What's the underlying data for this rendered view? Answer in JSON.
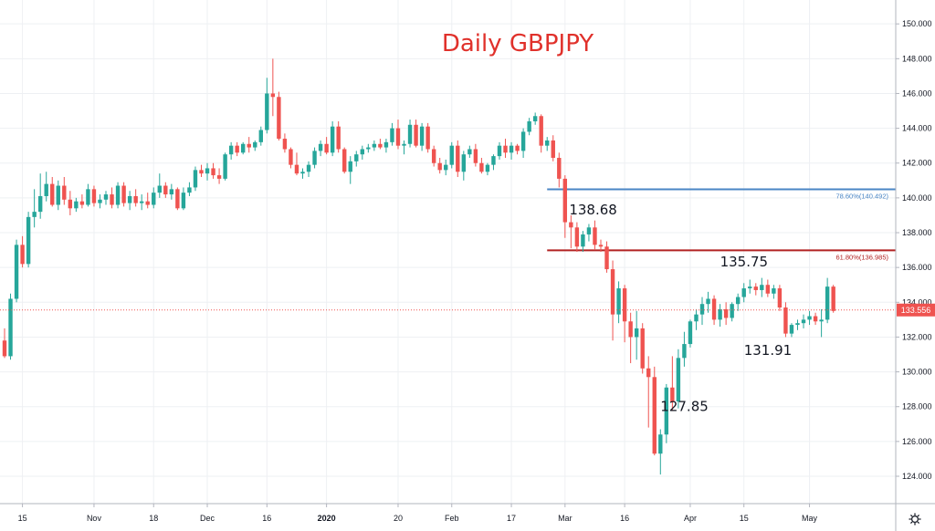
{
  "chart_data": {
    "type": "candlestick",
    "title": "Daily GBPJPY",
    "y_axis": {
      "ylim": [
        123.5,
        151.0
      ],
      "ticks": [
        "124.000",
        "126.000",
        "128.000",
        "130.000",
        "132.000",
        "134.000",
        "136.000",
        "138.000",
        "140.000",
        "142.000",
        "144.000",
        "146.000",
        "148.000",
        "150.000"
      ],
      "tick_values": [
        124,
        126,
        128,
        130,
        132,
        134,
        136,
        138,
        140,
        142,
        144,
        146,
        148,
        150
      ]
    },
    "x_axis": {
      "ticks": [
        {
          "label": "15",
          "index": 3,
          "bold": false
        },
        {
          "label": "Nov",
          "index": 15,
          "bold": false
        },
        {
          "label": "18",
          "index": 25,
          "bold": false
        },
        {
          "label": "Dec",
          "index": 34,
          "bold": false
        },
        {
          "label": "16",
          "index": 44,
          "bold": false
        },
        {
          "label": "2020",
          "index": 54,
          "bold": true
        },
        {
          "label": "20",
          "index": 66,
          "bold": false
        },
        {
          "label": "Feb",
          "index": 75,
          "bold": false
        },
        {
          "label": "17",
          "index": 85,
          "bold": false
        },
        {
          "label": "Mar",
          "index": 94,
          "bold": false
        },
        {
          "label": "16",
          "index": 104,
          "bold": false
        },
        {
          "label": "Apr",
          "index": 115,
          "bold": false
        },
        {
          "label": "15",
          "index": 124,
          "bold": false
        },
        {
          "label": "May",
          "index": 135,
          "bold": false
        }
      ]
    },
    "candles": [
      [
        131.8,
        132.5,
        130.8,
        130.9
      ],
      [
        130.9,
        134.5,
        130.7,
        134.2
      ],
      [
        134.2,
        137.6,
        134.0,
        137.3
      ],
      [
        137.3,
        137.8,
        136.0,
        136.2
      ],
      [
        136.2,
        139.2,
        136.0,
        138.9
      ],
      [
        138.9,
        140.5,
        138.3,
        139.2
      ],
      [
        139.2,
        141.4,
        138.8,
        140.1
      ],
      [
        140.1,
        141.5,
        139.8,
        140.8
      ],
      [
        140.8,
        141.2,
        139.5,
        139.6
      ],
      [
        139.6,
        141.0,
        139.3,
        140.7
      ],
      [
        140.7,
        141.2,
        139.6,
        139.9
      ],
      [
        139.9,
        140.4,
        139.0,
        139.4
      ],
      [
        139.4,
        140.0,
        139.2,
        139.8
      ],
      [
        139.8,
        140.2,
        139.4,
        139.6
      ],
      [
        139.6,
        140.8,
        139.5,
        140.5
      ],
      [
        140.5,
        140.7,
        139.5,
        139.7
      ],
      [
        139.7,
        140.2,
        139.4,
        139.9
      ],
      [
        139.9,
        140.4,
        139.6,
        140.2
      ],
      [
        140.2,
        140.6,
        139.4,
        139.6
      ],
      [
        139.6,
        140.9,
        139.4,
        140.7
      ],
      [
        140.7,
        140.9,
        139.5,
        139.7
      ],
      [
        139.7,
        140.4,
        139.3,
        140.1
      ],
      [
        140.1,
        140.5,
        139.5,
        139.7
      ],
      [
        139.7,
        140.2,
        139.3,
        139.8
      ],
      [
        139.8,
        140.3,
        139.4,
        139.6
      ],
      [
        139.6,
        140.6,
        139.4,
        140.3
      ],
      [
        140.3,
        141.4,
        140.0,
        140.7
      ],
      [
        140.7,
        140.9,
        140.0,
        140.2
      ],
      [
        140.2,
        140.8,
        139.9,
        140.5
      ],
      [
        140.5,
        140.6,
        139.3,
        139.4
      ],
      [
        139.4,
        140.6,
        139.3,
        140.3
      ],
      [
        140.3,
        140.9,
        140.1,
        140.6
      ],
      [
        140.6,
        141.8,
        140.4,
        141.6
      ],
      [
        141.6,
        141.9,
        141.2,
        141.4
      ],
      [
        141.4,
        142.0,
        141.0,
        141.7
      ],
      [
        141.7,
        142.0,
        141.1,
        141.3
      ],
      [
        141.3,
        141.7,
        140.8,
        141.1
      ],
      [
        141.1,
        142.6,
        141.0,
        142.5
      ],
      [
        142.5,
        143.2,
        142.2,
        143.0
      ],
      [
        143.0,
        143.2,
        142.4,
        142.6
      ],
      [
        142.6,
        143.2,
        142.5,
        143.1
      ],
      [
        143.1,
        143.5,
        142.6,
        142.9
      ],
      [
        142.9,
        143.3,
        142.7,
        143.2
      ],
      [
        143.2,
        144.1,
        143.0,
        143.9
      ],
      [
        143.9,
        146.9,
        143.7,
        146.0
      ],
      [
        146.0,
        148.0,
        144.7,
        145.8
      ],
      [
        145.8,
        146.1,
        143.3,
        143.4
      ],
      [
        143.4,
        143.7,
        142.6,
        142.8
      ],
      [
        142.8,
        142.9,
        141.7,
        141.9
      ],
      [
        141.9,
        142.6,
        141.3,
        141.4
      ],
      [
        141.4,
        141.7,
        141.1,
        141.5
      ],
      [
        141.5,
        142.1,
        141.2,
        141.9
      ],
      [
        141.9,
        142.9,
        141.7,
        142.7
      ],
      [
        142.7,
        143.3,
        142.4,
        143.1
      ],
      [
        143.1,
        143.5,
        142.5,
        142.6
      ],
      [
        142.6,
        144.4,
        142.4,
        144.1
      ],
      [
        144.1,
        144.4,
        142.6,
        142.8
      ],
      [
        142.8,
        142.9,
        141.4,
        141.5
      ],
      [
        141.5,
        142.4,
        140.8,
        142.1
      ],
      [
        142.1,
        142.7,
        141.8,
        142.5
      ],
      [
        142.5,
        143.0,
        142.2,
        142.8
      ],
      [
        142.8,
        143.1,
        142.6,
        142.9
      ],
      [
        142.9,
        143.3,
        142.7,
        143.1
      ],
      [
        143.1,
        143.4,
        142.8,
        142.9
      ],
      [
        142.9,
        143.4,
        142.6,
        143.2
      ],
      [
        143.2,
        144.3,
        143.0,
        144.0
      ],
      [
        144.0,
        144.5,
        142.8,
        143.0
      ],
      [
        143.0,
        143.3,
        142.5,
        143.1
      ],
      [
        143.1,
        144.5,
        142.9,
        144.2
      ],
      [
        144.2,
        144.5,
        142.9,
        143.0
      ],
      [
        143.0,
        144.3,
        142.7,
        144.1
      ],
      [
        144.1,
        144.3,
        142.6,
        142.8
      ],
      [
        142.8,
        143.0,
        141.8,
        142.0
      ],
      [
        142.0,
        142.3,
        141.4,
        141.6
      ],
      [
        141.6,
        142.2,
        141.3,
        141.9
      ],
      [
        141.9,
        143.2,
        141.7,
        143.0
      ],
      [
        143.0,
        143.3,
        141.2,
        141.5
      ],
      [
        141.5,
        142.7,
        141.0,
        142.5
      ],
      [
        142.5,
        143.0,
        142.3,
        142.8
      ],
      [
        142.8,
        143.1,
        141.8,
        142.0
      ],
      [
        142.0,
        142.3,
        141.4,
        141.5
      ],
      [
        141.5,
        142.0,
        141.3,
        141.9
      ],
      [
        141.9,
        142.5,
        141.6,
        142.4
      ],
      [
        142.4,
        143.2,
        142.2,
        143.0
      ],
      [
        143.0,
        143.4,
        142.3,
        142.6
      ],
      [
        142.6,
        143.2,
        142.2,
        143.0
      ],
      [
        143.0,
        143.1,
        142.5,
        142.7
      ],
      [
        142.7,
        144.0,
        142.3,
        143.8
      ],
      [
        143.8,
        144.6,
        143.6,
        144.4
      ],
      [
        144.4,
        144.9,
        144.2,
        144.7
      ],
      [
        144.7,
        144.8,
        142.6,
        143.0
      ],
      [
        143.0,
        143.5,
        142.7,
        143.3
      ],
      [
        143.3,
        143.6,
        142.1,
        142.3
      ],
      [
        142.3,
        142.6,
        140.6,
        141.1
      ],
      [
        141.1,
        141.3,
        137.7,
        138.6
      ],
      [
        138.6,
        139.0,
        137.1,
        138.3
      ],
      [
        138.3,
        138.6,
        136.9,
        137.2
      ],
      [
        137.2,
        138.1,
        136.9,
        137.9
      ],
      [
        137.9,
        138.5,
        137.5,
        138.3
      ],
      [
        138.3,
        138.7,
        137.0,
        137.3
      ],
      [
        137.3,
        137.6,
        136.9,
        137.2
      ],
      [
        137.2,
        137.5,
        135.7,
        135.9
      ],
      [
        135.9,
        136.4,
        131.8,
        133.3
      ],
      [
        133.3,
        135.2,
        132.8,
        134.8
      ],
      [
        134.8,
        135.0,
        131.7,
        132.9
      ],
      [
        132.9,
        133.4,
        130.5,
        132.0
      ],
      [
        132.0,
        133.5,
        130.7,
        132.5
      ],
      [
        132.5,
        132.8,
        129.9,
        130.2
      ],
      [
        130.2,
        130.9,
        126.8,
        129.7
      ],
      [
        129.7,
        130.3,
        125.2,
        125.3
      ],
      [
        125.3,
        126.7,
        124.1,
        126.4
      ],
      [
        126.4,
        129.3,
        125.9,
        129.1
      ],
      [
        129.1,
        130.9,
        127.8,
        128.3
      ],
      [
        128.3,
        131.3,
        127.9,
        130.8
      ],
      [
        130.8,
        132.3,
        130.3,
        131.6
      ],
      [
        131.6,
        133.0,
        131.4,
        132.9
      ],
      [
        132.9,
        133.6,
        132.4,
        133.3
      ],
      [
        133.3,
        134.3,
        132.7,
        133.9
      ],
      [
        133.9,
        134.6,
        133.4,
        134.2
      ],
      [
        134.2,
        134.4,
        132.7,
        133.0
      ],
      [
        133.0,
        133.9,
        132.6,
        133.6
      ],
      [
        133.6,
        134.0,
        132.7,
        133.1
      ],
      [
        133.1,
        134.0,
        132.9,
        133.9
      ],
      [
        133.9,
        134.5,
        133.5,
        134.3
      ],
      [
        134.3,
        135.1,
        134.0,
        134.8
      ],
      [
        134.8,
        135.3,
        134.5,
        134.9
      ],
      [
        134.9,
        135.1,
        134.4,
        134.7
      ],
      [
        134.7,
        135.4,
        134.3,
        135.0
      ],
      [
        135.0,
        135.3,
        134.3,
        134.5
      ],
      [
        134.5,
        135.0,
        134.2,
        134.8
      ],
      [
        134.8,
        135.0,
        133.5,
        133.7
      ],
      [
        133.7,
        134.0,
        132.0,
        132.2
      ],
      [
        132.2,
        132.8,
        132.0,
        132.7
      ],
      [
        132.7,
        133.0,
        132.4,
        132.8
      ],
      [
        132.8,
        133.3,
        132.5,
        133.0
      ],
      [
        133.0,
        133.5,
        132.7,
        133.2
      ],
      [
        133.2,
        133.4,
        132.7,
        132.9
      ],
      [
        132.9,
        133.6,
        132.0,
        133.0
      ],
      [
        133.0,
        135.4,
        132.8,
        134.9
      ],
      [
        134.9,
        135.0,
        133.4,
        133.5
      ]
    ],
    "fib_levels": [
      {
        "label": "78.60%(140.492)",
        "value": 140.492,
        "color": "#4a86c5",
        "from_index": 91
      },
      {
        "label": "61.80%(136.985)",
        "value": 136.985,
        "color": "#b22222",
        "from_index": 91
      }
    ],
    "current_price": {
      "value": 133.556,
      "label": "133.556",
      "color": "#ef5350"
    },
    "annotations": [
      {
        "text": "138.68",
        "index": 95,
        "value": 138.68
      },
      {
        "text": "135.75",
        "index": 120,
        "value": 135.75
      },
      {
        "text": "131.91",
        "index": 124,
        "value": 131.91
      },
      {
        "text": "127.85",
        "index": 110,
        "value": 127.85
      }
    ],
    "colors": {
      "up": "#26a69a",
      "down": "#ef5350",
      "grid": "#eef0f3",
      "axis": "#b2b5be"
    }
  },
  "icons": {
    "settings": "gear-icon"
  }
}
